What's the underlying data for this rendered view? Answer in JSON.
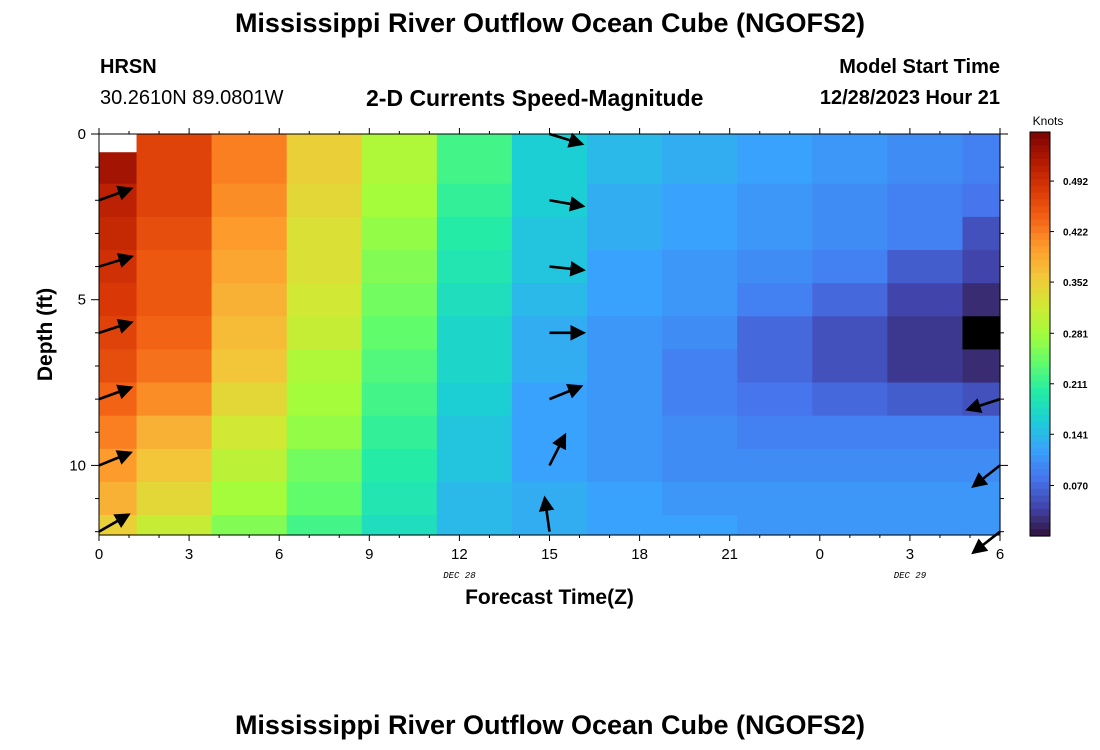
{
  "header": {
    "title": "Mississippi River Outflow Ocean Cube (NGOFS2)",
    "station_name": "HRSN",
    "station_coords": "30.2610N  89.0801W",
    "subtitle": "2-D Currents Speed-Magnitude",
    "model_start_label": "Model Start Time",
    "model_start_value": "12/28/2023 Hour 21",
    "footer_title": "Mississippi River Outflow Ocean Cube (NGOFS2)"
  },
  "chart_data": {
    "type": "heatmap",
    "title": "2-D Currents Speed-Magnitude",
    "xlabel": "Forecast Time(Z)",
    "ylabel": "Depth (ft)",
    "x_tick_labels": [
      "0",
      "3",
      "6",
      "9",
      "12",
      "15",
      "18",
      "21",
      "0",
      "3",
      "6"
    ],
    "x_date_labels": [
      {
        "label": "DEC 28",
        "hour": 12
      },
      {
        "label": "DEC 29",
        "hour": 27
      }
    ],
    "y_ticks": [
      0,
      5,
      10
    ],
    "xlim": [
      0,
      30
    ],
    "ylim": [
      0,
      12.1
    ],
    "colorbar": {
      "label": "Knots",
      "ticks": [
        "0.492",
        "0.422",
        "0.352",
        "0.281",
        "0.211",
        "0.141",
        "0.070"
      ],
      "tick_values": [
        0.492,
        0.422,
        0.352,
        0.281,
        0.211,
        0.141,
        0.07
      ],
      "range": [
        0.0,
        0.56
      ],
      "colors": [
        "#30123b",
        "#4145ab",
        "#4675ed",
        "#39a2fc",
        "#1bcfd4",
        "#24eca6",
        "#61fc6c",
        "#a4fc3b",
        "#d1e834",
        "#f3c63a",
        "#fe9b2d",
        "#f36315",
        "#d93806",
        "#b11901",
        "#7a0403"
      ]
    },
    "time_columns": [
      0,
      1.25,
      3.75,
      6.25,
      8.75,
      11.25,
      13.75,
      16.25,
      18.75,
      21.25,
      23.75,
      26.25,
      28.75,
      30
    ],
    "depth_rows": [
      0,
      0.55,
      1.5,
      2.5,
      3.5,
      4.5,
      5.5,
      6.5,
      7.5,
      8.5,
      9.5,
      10.5,
      11.5,
      12.1
    ],
    "speed_knots": [
      [
        null,
        0.47,
        0.42,
        0.35,
        0.29,
        0.22,
        0.16,
        0.14,
        0.13,
        0.12,
        0.11,
        0.1,
        0.09
      ],
      [
        0.53,
        0.47,
        0.42,
        0.35,
        0.29,
        0.22,
        0.16,
        0.14,
        0.13,
        0.12,
        0.11,
        0.1,
        0.09
      ],
      [
        0.51,
        0.47,
        0.41,
        0.34,
        0.28,
        0.21,
        0.16,
        0.13,
        0.12,
        0.11,
        0.1,
        0.09,
        0.08
      ],
      [
        0.5,
        0.46,
        0.4,
        0.33,
        0.27,
        0.2,
        0.15,
        0.13,
        0.12,
        0.11,
        0.1,
        0.09,
        0.05
      ],
      [
        0.49,
        0.45,
        0.39,
        0.33,
        0.26,
        0.19,
        0.15,
        0.12,
        0.11,
        0.1,
        0.09,
        0.06,
        0.04
      ],
      [
        0.48,
        0.45,
        0.38,
        0.32,
        0.25,
        0.18,
        0.14,
        0.12,
        0.11,
        0.09,
        0.07,
        0.04,
        0.02
      ],
      [
        0.47,
        0.44,
        0.37,
        0.31,
        0.24,
        0.17,
        0.13,
        0.11,
        0.1,
        0.07,
        0.05,
        0.03,
        0.0
      ],
      [
        0.46,
        0.43,
        0.36,
        0.29,
        0.23,
        0.17,
        0.13,
        0.11,
        0.09,
        0.07,
        0.05,
        0.03,
        0.02
      ],
      [
        0.44,
        0.41,
        0.34,
        0.28,
        0.22,
        0.16,
        0.12,
        0.11,
        0.09,
        0.08,
        0.07,
        0.06,
        0.05
      ],
      [
        0.42,
        0.38,
        0.32,
        0.27,
        0.21,
        0.15,
        0.12,
        0.11,
        0.1,
        0.09,
        0.09,
        0.09,
        0.09
      ],
      [
        0.4,
        0.36,
        0.3,
        0.25,
        0.2,
        0.15,
        0.12,
        0.11,
        0.1,
        0.1,
        0.1,
        0.1,
        0.1
      ],
      [
        0.38,
        0.34,
        0.28,
        0.24,
        0.19,
        0.14,
        0.13,
        0.12,
        0.11,
        0.11,
        0.11,
        0.11,
        0.11
      ],
      [
        0.35,
        0.31,
        0.26,
        0.22,
        0.18,
        0.14,
        0.13,
        0.12,
        0.12,
        0.11,
        0.11,
        0.11,
        0.11
      ]
    ],
    "current_vectors": [
      {
        "hour": 0,
        "depth": 2,
        "dir_deg": 20
      },
      {
        "hour": 0,
        "depth": 4,
        "dir_deg": 17
      },
      {
        "hour": 0,
        "depth": 6,
        "dir_deg": 18
      },
      {
        "hour": 0,
        "depth": 8,
        "dir_deg": 20
      },
      {
        "hour": 0,
        "depth": 10,
        "dir_deg": 22
      },
      {
        "hour": 0,
        "depth": 12,
        "dir_deg": 30
      },
      {
        "hour": 15,
        "depth": 0,
        "dir_deg": -17
      },
      {
        "hour": 15,
        "depth": 2,
        "dir_deg": -10
      },
      {
        "hour": 15,
        "depth": 4,
        "dir_deg": -6
      },
      {
        "hour": 15,
        "depth": 6,
        "dir_deg": 0
      },
      {
        "hour": 15,
        "depth": 8,
        "dir_deg": 22
      },
      {
        "hour": 15,
        "depth": 10,
        "dir_deg": 63
      },
      {
        "hour": 15,
        "depth": 12,
        "dir_deg": 98
      },
      {
        "hour": 30,
        "depth": 8,
        "dir_deg": -162
      },
      {
        "hour": 30,
        "depth": 10,
        "dir_deg": -142
      },
      {
        "hour": 30,
        "depth": 12,
        "dir_deg": -142
      }
    ]
  }
}
